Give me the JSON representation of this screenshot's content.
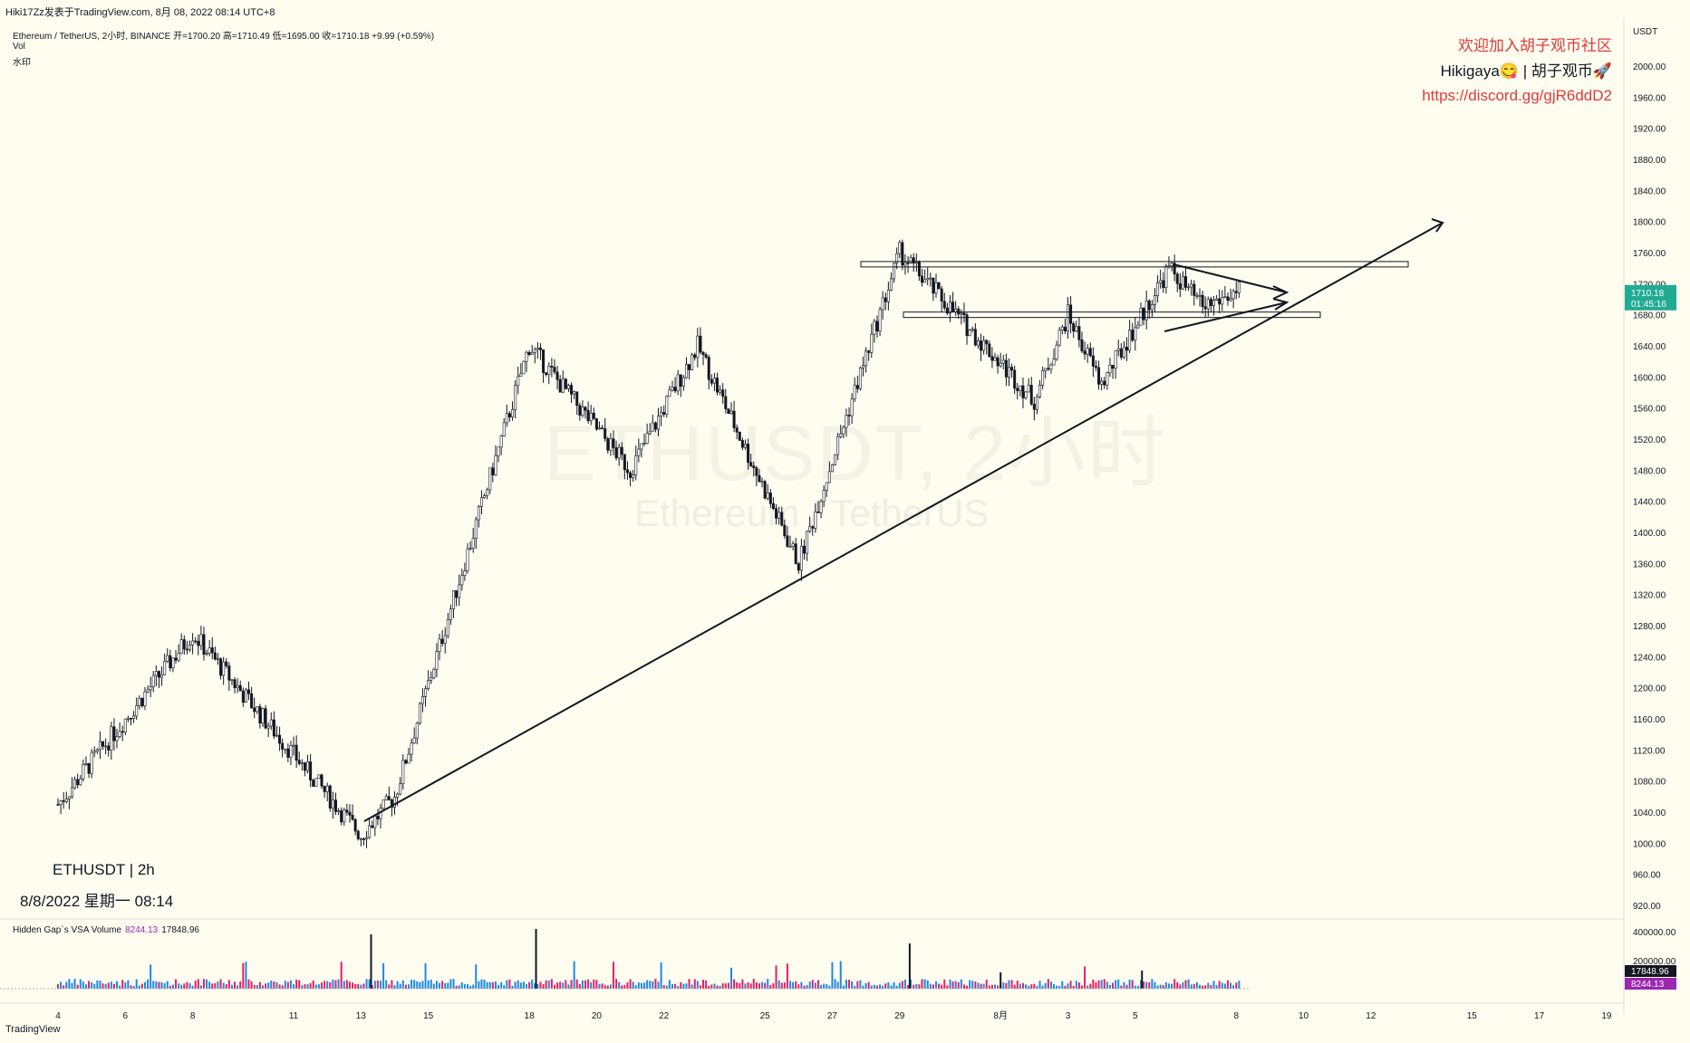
{
  "header": {
    "published": "Hiki17Zz发表于TradingView.com, 8月 08, 2022 08:14 UTC+8",
    "symbol_line": "Ethereum / TetherUS, 2小时, BINANCE  开=1700.20  高=1710.49  低=1695.00  收=1710.18  +9.99 (+0.59%)",
    "indicator1": "Vol",
    "indicator2": "水印"
  },
  "promo": {
    "line1": "欢迎加入胡子观币社区",
    "line2": "Hikigaya😋 | 胡子观币🚀",
    "line3": "https://discord.gg/gjR6ddD2"
  },
  "watermark": {
    "main": "ETHUSDT, 2小时",
    "sub": "Ethereum / TetherUS"
  },
  "info": {
    "ticker": "ETHUSDT | 2h",
    "datetime": "8/8/2022 星期一 08:14"
  },
  "volume_panel": {
    "label": "Hidden Gap`s VSA Volume",
    "value1": "8244.13",
    "value2": "17848.96",
    "axis_ticks": [
      "400000.00",
      "200000.00"
    ],
    "badge_top": "17848.96",
    "badge_bottom": "8244.13"
  },
  "price_axis": {
    "currency": "USDT",
    "ticks": [
      2000,
      1960,
      1920,
      1880,
      1840,
      1800,
      1760,
      1720,
      1680,
      1640,
      1600,
      1560,
      1520,
      1480,
      1440,
      1400,
      1360,
      1320,
      1280,
      1240,
      1200,
      1160,
      1120,
      1080,
      1040,
      1000,
      960,
      920
    ],
    "last_price": "1710.18",
    "countdown": "01:45:16"
  },
  "footer": {
    "brand": "TradingView"
  },
  "colors": {
    "up": "#26a69a",
    "down": "#ef5350",
    "background": "#fefdf0",
    "badge_green": "#22ab94"
  },
  "chart_data": {
    "type": "candlestick",
    "title": "Ethereum / TetherUS, 2小时, BINANCE",
    "ylabel": "USDT",
    "ylim": [
      900,
      2020
    ],
    "x_ticks": [
      "4",
      "6",
      "8",
      "11",
      "13",
      "15",
      "18",
      "20",
      "22",
      "25",
      "27",
      "29",
      "8月",
      "3",
      "5",
      "8",
      "10",
      "12",
      "15",
      "17",
      "19"
    ],
    "key_levels": [
      {
        "date": "Jul 4",
        "price": 1050
      },
      {
        "date": "Jul 8",
        "price": 1270
      },
      {
        "date": "Jul 13",
        "price": 1010
      },
      {
        "date": "Jul 14",
        "price": 1060
      },
      {
        "date": "Jul 18",
        "price": 1640
      },
      {
        "date": "Jul 21",
        "price": 1480
      },
      {
        "date": "Jul 23",
        "price": 1640
      },
      {
        "date": "Jul 26",
        "price": 1360
      },
      {
        "date": "Jul 29",
        "price": 1760
      },
      {
        "date": "Aug 2",
        "price": 1570
      },
      {
        "date": "Aug 3",
        "price": 1680
      },
      {
        "date": "Aug 4",
        "price": 1590
      },
      {
        "date": "Aug 6",
        "price": 1740
      },
      {
        "date": "Aug 7",
        "price": 1690
      },
      {
        "date": "Aug 8",
        "price": 1710.18
      }
    ],
    "resistance_zone": 1745,
    "support_zone": 1680,
    "ohlc_last": {
      "open": 1700.2,
      "high": 1710.49,
      "low": 1695.0,
      "close": 1710.18,
      "change": 9.99,
      "change_pct": 0.59
    }
  }
}
